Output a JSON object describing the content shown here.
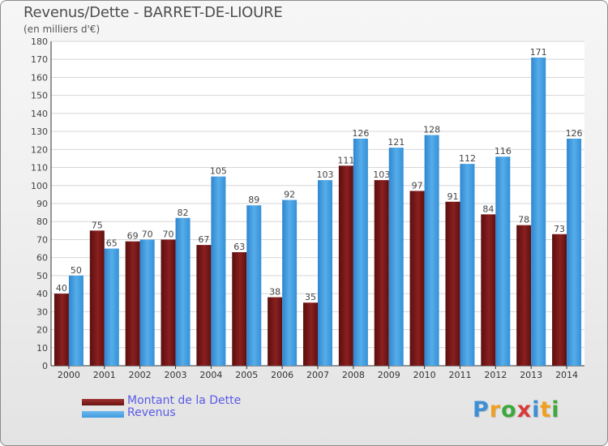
{
  "chart_data": {
    "type": "bar",
    "title": "Revenus/Dette - BARRET-DE-LIOURE",
    "subtitle": "(en milliers d'€)",
    "categories": [
      "2000",
      "2001",
      "2002",
      "2003",
      "2004",
      "2005",
      "2006",
      "2007",
      "2008",
      "2009",
      "2010",
      "2011",
      "2012",
      "2013",
      "2014"
    ],
    "series": [
      {
        "name": "Montant de la Dette",
        "color": "#7a1a1a",
        "values": [
          40,
          75,
          69,
          70,
          67,
          63,
          38,
          35,
          111,
          103,
          97,
          91,
          84,
          78,
          73
        ]
      },
      {
        "name": "Revenus",
        "color": "#3d9be0",
        "values": [
          50,
          65,
          70,
          82,
          105,
          89,
          92,
          103,
          126,
          121,
          128,
          112,
          116,
          171,
          126
        ]
      }
    ],
    "ylim": [
      0,
      180
    ],
    "yticks": [
      0,
      10,
      20,
      30,
      40,
      50,
      60,
      70,
      80,
      90,
      100,
      110,
      120,
      130,
      140,
      150,
      160,
      170,
      180
    ],
    "grid": true,
    "legend_position": "bottom-left"
  },
  "legend": {
    "items": [
      {
        "label": "Montant de la Dette",
        "color": "#6b1313"
      },
      {
        "label": "Revenus",
        "color": "#3d9be0"
      }
    ]
  },
  "logo": {
    "letters": [
      "P",
      "r",
      "o",
      "x",
      "i",
      "t",
      "i"
    ],
    "colors": [
      "#3d8fd6",
      "#f0a020",
      "#3da83d",
      "#d93a3a",
      "#3d8fd6",
      "#f0a020",
      "#3da83d"
    ]
  }
}
